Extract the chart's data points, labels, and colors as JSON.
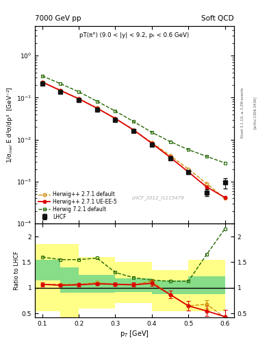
{
  "title_left": "7000 GeV pp",
  "title_right": "Soft QCD",
  "annotation": "pT(π°) (9.0 < |y| < 9.2, pₜ < 0.6 GeV)",
  "watermark": "LHCF_2012_I1115479",
  "right_label_top": "Rivet 3.1.10, ≥ 3.2M events",
  "right_label_bot": "[arXiv:1306.3436]",
  "ylabel_main": "1/σ$_{inel}$ E d³σ/dp³  [GeV⁻²]",
  "ylabel_ratio": "Ratio to LHCF",
  "xlabel": "p$_T$ [GeV]",
  "lhcf_x": [
    0.1,
    0.15,
    0.2,
    0.25,
    0.3,
    0.35,
    0.4,
    0.45,
    0.5,
    0.55,
    0.6
  ],
  "lhcf_y": [
    0.22,
    0.14,
    0.089,
    0.052,
    0.03,
    0.016,
    0.0075,
    0.0036,
    0.0017,
    0.00055,
    0.00095
  ],
  "lhcf_yerr": [
    0.018,
    0.01,
    0.007,
    0.004,
    0.0025,
    0.0013,
    0.0006,
    0.0003,
    0.00018,
    0.0001,
    0.00025
  ],
  "hw271def_x": [
    0.1,
    0.15,
    0.2,
    0.25,
    0.3,
    0.35,
    0.4,
    0.45,
    0.5,
    0.55,
    0.6
  ],
  "hw271def_y": [
    0.235,
    0.15,
    0.095,
    0.057,
    0.032,
    0.017,
    0.0085,
    0.0042,
    0.002,
    0.0009,
    0.0004
  ],
  "hw271ue_x": [
    0.1,
    0.15,
    0.2,
    0.25,
    0.3,
    0.35,
    0.4,
    0.45,
    0.5,
    0.55,
    0.6
  ],
  "hw271ue_y": [
    0.235,
    0.148,
    0.094,
    0.056,
    0.032,
    0.017,
    0.0082,
    0.0038,
    0.0017,
    0.00075,
    0.00042
  ],
  "hw721def_x": [
    0.1,
    0.15,
    0.2,
    0.25,
    0.3,
    0.35,
    0.4,
    0.45,
    0.5,
    0.55,
    0.6
  ],
  "hw721def_y": [
    0.33,
    0.215,
    0.138,
    0.082,
    0.048,
    0.027,
    0.015,
    0.009,
    0.0058,
    0.004,
    0.0028
  ],
  "ratio_hw271ue_x": [
    0.1,
    0.15,
    0.2,
    0.25,
    0.3,
    0.35,
    0.4,
    0.45,
    0.5,
    0.55,
    0.6
  ],
  "ratio_hw271ue_y": [
    1.07,
    1.05,
    1.06,
    1.08,
    1.07,
    1.06,
    1.09,
    0.87,
    0.65,
    0.55,
    0.44
  ],
  "ratio_hw271ue_yerr": [
    0.04,
    0.03,
    0.03,
    0.03,
    0.03,
    0.04,
    0.05,
    0.07,
    0.09,
    0.1,
    0.13
  ],
  "ratio_hw271def_x": [
    0.1,
    0.15,
    0.2,
    0.25,
    0.3,
    0.35,
    0.4,
    0.45,
    0.5,
    0.55,
    0.6
  ],
  "ratio_hw271def_y": [
    1.07,
    1.07,
    1.07,
    1.1,
    1.07,
    1.06,
    1.13,
    0.87,
    0.65,
    0.68,
    0.42
  ],
  "ratio_hw271def_yerr": [
    0.0,
    0.0,
    0.0,
    0.0,
    0.0,
    0.0,
    0.0,
    0.0,
    0.0,
    0.08,
    0.0
  ],
  "ratio_hw721def_x": [
    0.1,
    0.15,
    0.2,
    0.25,
    0.3,
    0.35,
    0.4,
    0.45,
    0.5,
    0.55,
    0.6
  ],
  "ratio_hw721def_y": [
    1.6,
    1.55,
    1.55,
    1.58,
    1.3,
    1.2,
    1.15,
    1.13,
    1.13,
    1.65,
    2.15
  ],
  "band_yellow_x": [
    0.08,
    0.15,
    0.2,
    0.3,
    0.4,
    0.5,
    0.6
  ],
  "band_yellow_lo": [
    0.55,
    0.35,
    0.6,
    0.7,
    0.55,
    0.55,
    0.55
  ],
  "band_yellow_hi": [
    1.85,
    1.85,
    1.6,
    1.5,
    1.35,
    1.55,
    1.55
  ],
  "band_green_x": [
    0.08,
    0.15,
    0.2,
    0.3,
    0.4,
    0.5,
    0.6
  ],
  "band_green_lo": [
    1.15,
    0.9,
    0.9,
    0.92,
    0.88,
    0.88,
    0.88
  ],
  "band_green_hi": [
    1.55,
    1.4,
    1.25,
    1.18,
    1.15,
    1.22,
    1.22
  ],
  "color_lhcf": "#111111",
  "color_hw271def": "#cc8800",
  "color_hw271ue": "#dd0000",
  "color_hw721def": "#226600",
  "ylim_main": [
    0.0001,
    5.0
  ],
  "ylim_ratio": [
    0.42,
    2.25
  ],
  "xlim": [
    0.08,
    0.625
  ]
}
